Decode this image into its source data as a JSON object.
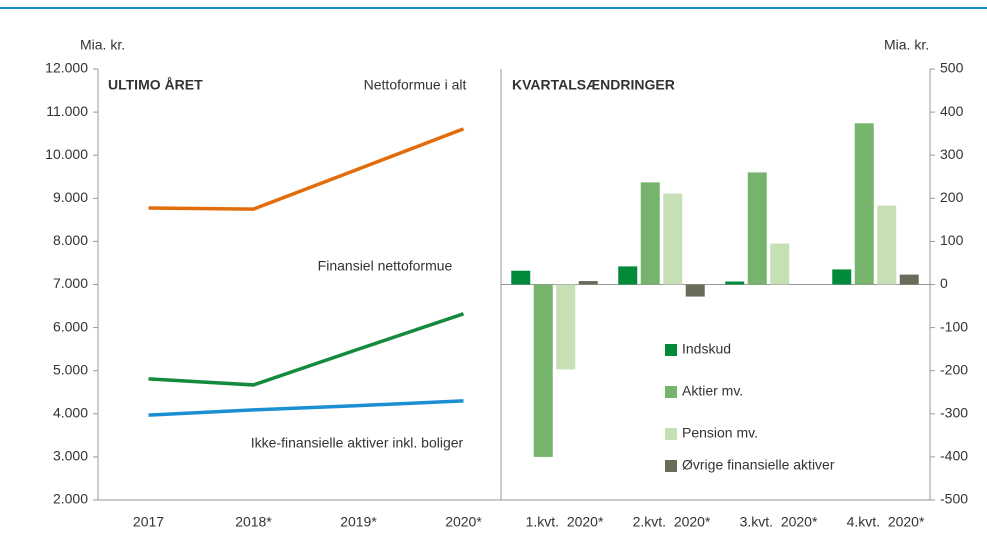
{
  "chart_data": [
    {
      "type": "line",
      "title": "ULTIMO ÅRET",
      "y_label": "Mia. kr.",
      "categories": [
        "2017",
        "2018*",
        "2019*",
        "2020*"
      ],
      "series": [
        {
          "name": "Nettoformue i alt",
          "color": "#e36c0a",
          "values": [
            8775,
            8750,
            9680,
            10610
          ]
        },
        {
          "name": "Finansiel nettoformue",
          "color": "#138a3c",
          "values": [
            4810,
            4670,
            5500,
            6320
          ]
        },
        {
          "name": "Ikke-finansielle aktiver inkl. boliger",
          "color": "#1b8fd2",
          "values": [
            3970,
            4090,
            4190,
            4300
          ]
        }
      ],
      "ylim": [
        2000,
        12000
      ],
      "yticks": [
        {
          "value": 2000,
          "label": "2.000"
        },
        {
          "value": 3000,
          "label": "3.000"
        },
        {
          "value": 4000,
          "label": "4.000"
        },
        {
          "value": 5000,
          "label": "5.000"
        },
        {
          "value": 6000,
          "label": "6.000"
        },
        {
          "value": 7000,
          "label": "7.000"
        },
        {
          "value": 8000,
          "label": "8.000"
        },
        {
          "value": 9000,
          "label": "9.000"
        },
        {
          "value": 10000,
          "label": "10.000"
        },
        {
          "value": 11000,
          "label": "11.000"
        },
        {
          "value": 12000,
          "label": "12.000"
        }
      ]
    },
    {
      "type": "bar",
      "title": "KVARTALSÆNDRINGER",
      "y_label": "Mia. kr.",
      "categories": [
        "1.kvt.  2020*",
        "2.kvt.  2020*",
        "3.kvt.  2020*",
        "4.kvt.  2020*"
      ],
      "series": [
        {
          "name": "Indskud",
          "color": "#008a3a",
          "values": [
            32,
            42,
            7,
            35
          ]
        },
        {
          "name": "Aktier mv.",
          "color": "#76b36d",
          "values": [
            -400,
            237,
            260,
            374
          ]
        },
        {
          "name": "Pension mv.",
          "color": "#c6dfb5",
          "values": [
            -197,
            211,
            95,
            183
          ]
        },
        {
          "name": "Øvrige finansielle aktiver",
          "color": "#6b6b5b",
          "values": [
            8,
            -28,
            0,
            23
          ]
        }
      ],
      "ylim": [
        -500,
        500
      ],
      "yticks": [
        -500,
        -400,
        -300,
        -200,
        -100,
        0,
        100,
        200,
        300,
        400,
        500
      ]
    }
  ]
}
